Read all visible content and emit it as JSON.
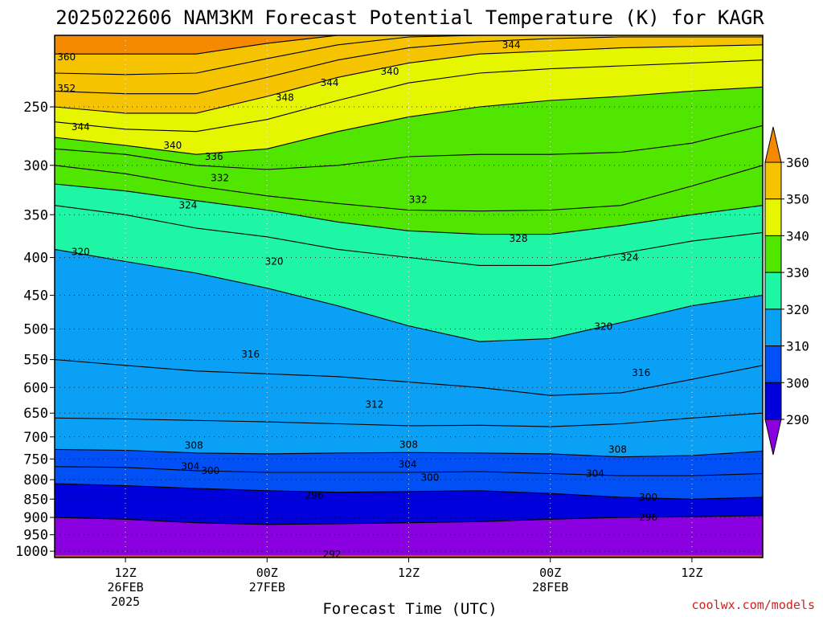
{
  "chart_data": {
    "type": "heatmap",
    "title": "2025022606 NAM3KM Forecast Potential Temperature (K) for KAGR",
    "xlabel": "Forecast Time (UTC)",
    "ylabel": "",
    "y_scale": "log",
    "y_reversed": true,
    "ylim": [
      1020,
      200
    ],
    "y_ticks": [
      250,
      300,
      350,
      400,
      450,
      500,
      550,
      600,
      650,
      700,
      750,
      800,
      850,
      900,
      950,
      1000
    ],
    "x_range_hours": [
      6,
      66
    ],
    "x_ticks": [
      {
        "hour": 12,
        "lines": [
          "12Z",
          "26FEB",
          "2025"
        ]
      },
      {
        "hour": 24,
        "lines": [
          "00Z",
          "27FEB"
        ]
      },
      {
        "hour": 36,
        "lines": [
          "12Z"
        ]
      },
      {
        "hour": 48,
        "lines": [
          "00Z",
          "28FEB"
        ]
      },
      {
        "hour": 60,
        "lines": [
          "12Z"
        ]
      }
    ],
    "color_levels": [
      290,
      300,
      310,
      320,
      330,
      340,
      350,
      360
    ],
    "level_colors": [
      "#8a00e0",
      "#0000dd",
      "#0050f5",
      "#0aa0f5",
      "#1ef5a5",
      "#50e600",
      "#e6f500",
      "#f5c300",
      "#f58a00"
    ],
    "colorbar_labels": [
      "360",
      "350",
      "340",
      "330",
      "320",
      "310",
      "300",
      "290"
    ],
    "contour_interval": 4,
    "surface_color": "#b0522a",
    "isentropes": [
      {
        "theta": 296,
        "p": [
          900,
          905,
          915,
          920,
          918,
          915,
          912,
          905,
          900,
          898,
          895
        ]
      },
      {
        "theta": 300,
        "p": [
          810,
          815,
          822,
          828,
          832,
          830,
          828,
          835,
          845,
          850,
          845
        ]
      },
      {
        "theta": 304,
        "p": [
          768,
          770,
          778,
          782,
          782,
          782,
          780,
          785,
          790,
          790,
          785
        ]
      },
      {
        "theta": 308,
        "p": [
          728,
          730,
          736,
          738,
          736,
          735,
          736,
          738,
          745,
          742,
          732
        ]
      },
      {
        "theta": 312,
        "p": [
          660,
          662,
          665,
          668,
          672,
          676,
          675,
          678,
          672,
          660,
          650
        ]
      },
      {
        "theta": 316,
        "p": [
          550,
          560,
          570,
          575,
          580,
          590,
          600,
          615,
          610,
          585,
          560
        ]
      },
      {
        "theta": 320,
        "p": [
          390,
          405,
          420,
          440,
          465,
          495,
          520,
          515,
          490,
          465,
          450
        ]
      },
      {
        "theta": 324,
        "p": [
          340,
          350,
          365,
          375,
          390,
          400,
          410,
          410,
          395,
          380,
          370
        ]
      },
      {
        "theta": 328,
        "p": [
          318,
          325,
          335,
          345,
          358,
          368,
          372,
          372,
          362,
          350,
          340
        ]
      },
      {
        "theta": 332,
        "p": [
          300,
          308,
          320,
          330,
          338,
          345,
          346,
          345,
          340,
          320,
          300
        ]
      },
      {
        "theta": 336,
        "p": [
          285,
          290,
          300,
          304,
          300,
          292,
          290,
          290,
          288,
          280,
          265
        ]
      },
      {
        "theta": 340,
        "p": [
          275,
          282,
          290,
          285,
          270,
          258,
          250,
          245,
          242,
          238,
          235
        ]
      },
      {
        "theta": 344,
        "p": [
          262,
          268,
          270,
          260,
          245,
          232,
          225,
          222,
          220,
          218,
          216
        ]
      },
      {
        "theta": 348,
        "p": [
          250,
          255,
          255,
          242,
          228,
          218,
          212,
          210,
          208,
          207,
          206
        ]
      },
      {
        "theta": 352,
        "p": [
          238,
          240,
          240,
          228,
          216,
          208,
          204,
          202,
          201,
          201,
          201
        ]
      },
      {
        "theta": 356,
        "p": [
          225,
          226,
          225,
          215,
          206,
          201,
          200,
          200,
          200,
          200,
          200
        ]
      },
      {
        "theta": 360,
        "p": [
          212,
          212,
          212,
          205,
          200,
          200,
          200,
          200,
          200,
          200,
          200
        ]
      }
    ],
    "isentrope_hours": [
      6,
      12,
      18,
      24,
      30,
      36,
      42,
      48,
      54,
      60,
      66
    ],
    "contour_labels": [
      {
        "text": "360",
        "hour": 7.0,
        "p": 214
      },
      {
        "text": "352",
        "hour": 7.0,
        "p": 236
      },
      {
        "text": "344",
        "hour": 8.2,
        "p": 266
      },
      {
        "text": "340",
        "hour": 16.0,
        "p": 282
      },
      {
        "text": "336",
        "hour": 19.5,
        "p": 292
      },
      {
        "text": "332",
        "hour": 20.0,
        "p": 312
      },
      {
        "text": "324",
        "hour": 17.3,
        "p": 340
      },
      {
        "text": "320",
        "hour": 8.2,
        "p": 393
      },
      {
        "text": "320",
        "hour": 24.6,
        "p": 405
      },
      {
        "text": "348",
        "hour": 25.5,
        "p": 243
      },
      {
        "text": "344",
        "hour": 29.3,
        "p": 232
      },
      {
        "text": "340",
        "hour": 34.4,
        "p": 224
      },
      {
        "text": "344",
        "hour": 44.7,
        "p": 206
      },
      {
        "text": "332",
        "hour": 36.8,
        "p": 334
      },
      {
        "text": "328",
        "hour": 45.3,
        "p": 377
      },
      {
        "text": "324",
        "hour": 54.7,
        "p": 400
      },
      {
        "text": "320",
        "hour": 52.5,
        "p": 496
      },
      {
        "text": "316",
        "hour": 22.6,
        "p": 541
      },
      {
        "text": "316",
        "hour": 55.7,
        "p": 573
      },
      {
        "text": "312",
        "hour": 33.1,
        "p": 633
      },
      {
        "text": "308",
        "hour": 17.8,
        "p": 719
      },
      {
        "text": "308",
        "hour": 36.0,
        "p": 717
      },
      {
        "text": "308",
        "hour": 53.7,
        "p": 728
      },
      {
        "text": "304",
        "hour": 17.5,
        "p": 767
      },
      {
        "text": "304",
        "hour": 35.9,
        "p": 763
      },
      {
        "text": "304",
        "hour": 51.8,
        "p": 785
      },
      {
        "text": "300",
        "hour": 19.2,
        "p": 778
      },
      {
        "text": "300",
        "hour": 37.8,
        "p": 795
      },
      {
        "text": "300",
        "hour": 56.3,
        "p": 845
      },
      {
        "text": "296",
        "hour": 28.0,
        "p": 840
      },
      {
        "text": "296",
        "hour": 56.3,
        "p": 900
      },
      {
        "text": "292",
        "hour": 29.5,
        "p": 1010
      }
    ]
  },
  "credit": "coolwx.com/models"
}
